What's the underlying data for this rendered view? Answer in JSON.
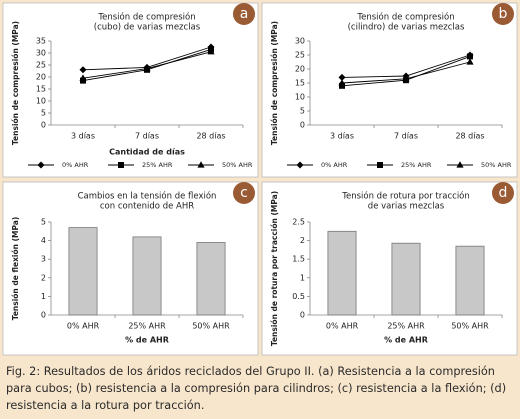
{
  "chart_data": [
    {
      "type": "line",
      "label": "a",
      "title": [
        "Tensión de compresión",
        "(cubo) de varias mezclas"
      ],
      "y_label": "Tensión de compresión (MPa)",
      "x_label": "Cantidad de días",
      "categories": [
        "3 días",
        "7 días",
        "28 días"
      ],
      "ylim": [
        0,
        35
      ],
      "yticks": [
        0,
        5,
        10,
        15,
        20,
        25,
        30,
        35
      ],
      "series": [
        {
          "name": "0% AHR",
          "color": "#000000",
          "marker": "diamond",
          "values": [
            23,
            24,
            32.5
          ]
        },
        {
          "name": "25% AHR",
          "color": "#000000",
          "marker": "square",
          "values": [
            18.5,
            23,
            31.5
          ]
        },
        {
          "name": "50% AHR",
          "color": "#000000",
          "marker": "triangle",
          "values": [
            19.5,
            23.5,
            30.5
          ]
        }
      ]
    },
    {
      "type": "line",
      "label": "b",
      "title": [
        "Tensión de compresión",
        "(cilindro) de varias mezclas"
      ],
      "y_label": "Tensión de compresión (MPa)",
      "categories": [
        "3 días",
        "7 días",
        "28 días"
      ],
      "ylim": [
        0,
        30
      ],
      "yticks": [
        0,
        5,
        10,
        15,
        20,
        25,
        30
      ],
      "series": [
        {
          "name": "0% AHR",
          "color": "#000000",
          "marker": "diamond",
          "values": [
            17,
            17.5,
            25
          ]
        },
        {
          "name": "25% AHR",
          "color": "#000000",
          "marker": "square",
          "values": [
            14,
            16,
            24.5
          ]
        },
        {
          "name": "50% AHR",
          "color": "#000000",
          "marker": "triangle",
          "values": [
            15,
            16.5,
            22.5
          ]
        }
      ]
    },
    {
      "type": "bar",
      "label": "c",
      "title": [
        "Cambios en la tensión de flexión",
        "con contenido de AHR"
      ],
      "y_label": "Tensión de flexión (MPa)",
      "x_label": "% de AHR",
      "categories": [
        "0% AHR",
        "25% AHR",
        "50% AHR"
      ],
      "values": [
        4.7,
        4.2,
        3.9
      ],
      "color": "#c8c8c8",
      "ylim": [
        0,
        5
      ],
      "yticks": [
        0,
        1,
        2,
        3,
        4,
        5
      ]
    },
    {
      "type": "bar",
      "label": "d",
      "title": [
        "Tensión de rotura por tracción",
        "de varias mezclas"
      ],
      "y_label": "Tensión de rotura por tracción (MPa)",
      "x_label": "% de AHR",
      "categories": [
        "0% AHR",
        "25% AHR",
        "50% AHR"
      ],
      "values": [
        2.25,
        1.93,
        1.85
      ],
      "color": "#c8c8c8",
      "ylim": [
        0,
        2.5
      ],
      "yticks": [
        0,
        0.5,
        1,
        1.5,
        2,
        2.5
      ]
    }
  ],
  "caption": "Fig. 2: Resultados de los áridos reciclados del Grupo II. (a) Resistencia a la compresión para cubos; (b) resistencia a la compresión para cilindros; (c) resistencia a la flexión; (d) resistencia a la rotura por tracción."
}
